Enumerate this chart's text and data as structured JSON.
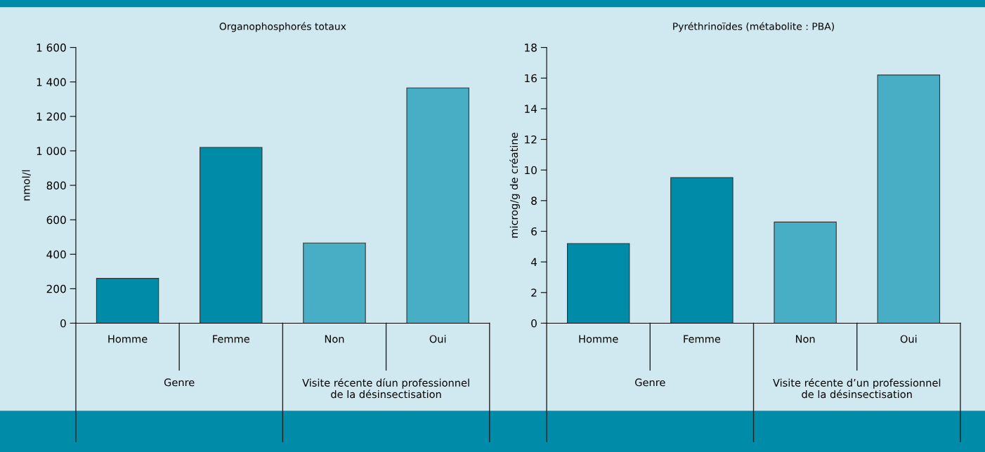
{
  "chart_data": [
    {
      "type": "bar",
      "title": "Organophosphorés totaux",
      "ylabel": "nmol/l",
      "categories": [
        "Homme",
        "Femme",
        "Non",
        "Oui"
      ],
      "values": [
        260,
        1020,
        465,
        1365
      ],
      "colors": [
        "#008ca8",
        "#008ca8",
        "#47aec5",
        "#47aec5"
      ],
      "ylim": [
        0,
        1600
      ],
      "yticks": [
        0,
        200,
        400,
        600,
        800,
        {
          "value": 1000,
          "label": "1 000"
        },
        {
          "value": 1200,
          "label": "1 200"
        },
        {
          "value": 1400,
          "label": "1 400"
        },
        {
          "value": 1600,
          "label": "1 600"
        }
      ],
      "grid": false,
      "legend": false,
      "annotations": [
        "Genre",
        "Visite récente díun professionnel\nde la désinsectisation"
      ]
    },
    {
      "type": "bar",
      "title": "Pyréthrinoïdes (métabolite : PBA)",
      "ylabel": "microg/g de créatine",
      "categories": [
        "Homme",
        "Femme",
        "Non",
        "Oui"
      ],
      "values": [
        5.2,
        9.5,
        6.6,
        16.2
      ],
      "colors": [
        "#008ca8",
        "#008ca8",
        "#47aec5",
        "#47aec5"
      ],
      "ylim": [
        0,
        18
      ],
      "yticks": [
        0,
        2,
        4,
        6,
        8,
        10,
        12,
        14,
        16,
        18
      ],
      "grid": false,
      "legend": false,
      "annotations": [
        "Genre",
        "Visite récente d’un professionnel\nde la désinsectisation"
      ]
    }
  ]
}
